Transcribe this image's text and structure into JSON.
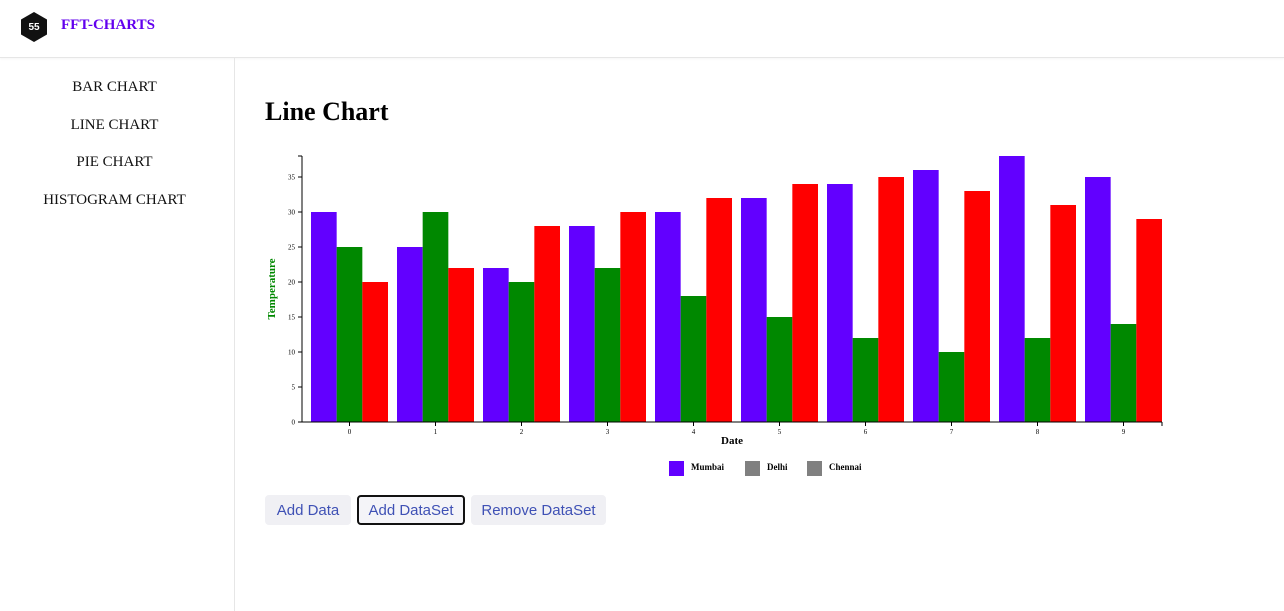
{
  "app": {
    "brand": "FFT-CHARTS"
  },
  "sidebar": {
    "items": [
      {
        "label": "BAR CHART"
      },
      {
        "label": "LINE CHART"
      },
      {
        "label": "PIE CHART"
      },
      {
        "label": "HISTOGRAM CHART"
      }
    ]
  },
  "main": {
    "title": "Line Chart"
  },
  "buttons": {
    "add_data": "Add Data",
    "add_dataset": "Add DataSet",
    "remove_dataset": "Remove DataSet"
  },
  "chart_data": {
    "type": "bar",
    "categories": [
      "0",
      "1",
      "2",
      "3",
      "4",
      "5",
      "6",
      "7",
      "8",
      "9"
    ],
    "series": [
      {
        "name": "Mumbai",
        "color": "#6200ff",
        "values": [
          30,
          25,
          22,
          28,
          30,
          32,
          34,
          36,
          38,
          35
        ]
      },
      {
        "name": "Delhi",
        "color": "#008800",
        "values": [
          25,
          30,
          20,
          22,
          18,
          15,
          12,
          10,
          12,
          14
        ]
      },
      {
        "name": "Chennai",
        "color": "#ff0000",
        "values": [
          20,
          22,
          28,
          30,
          32,
          34,
          35,
          33,
          31,
          29
        ]
      }
    ],
    "legend_colors": [
      "#6200ff",
      "#808080",
      "#808080"
    ],
    "xlabel": "Date",
    "ylabel": "Temperature",
    "ylabel_color": "#008800",
    "yticks": [
      0,
      5,
      10,
      15,
      20,
      25,
      30,
      35
    ],
    "ylim": [
      0,
      38
    ],
    "legend_position": "bottom-center"
  }
}
